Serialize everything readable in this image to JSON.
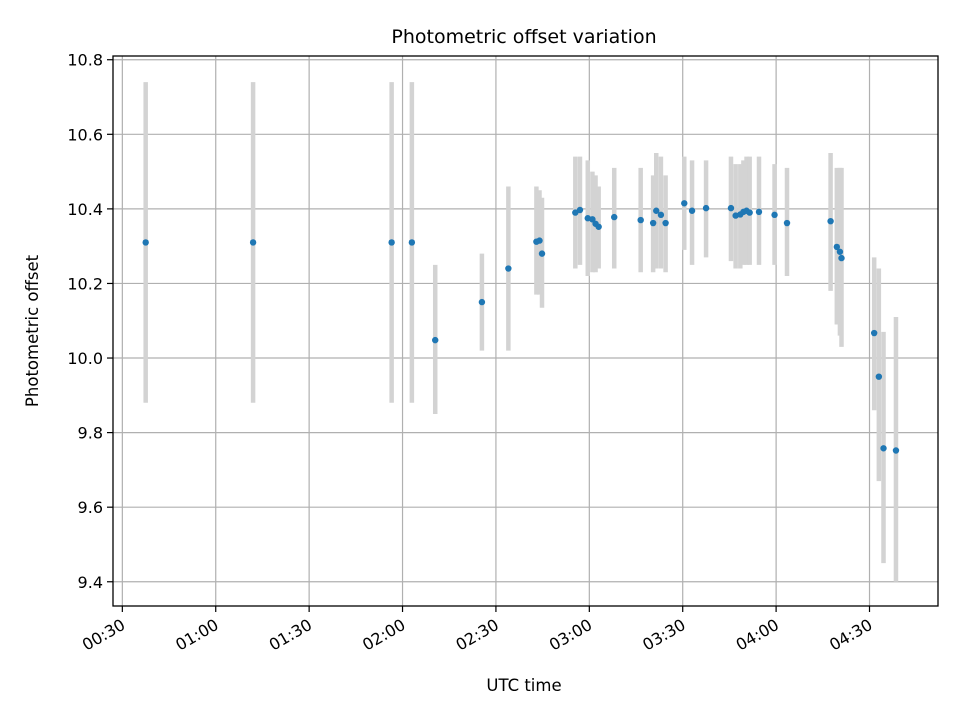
{
  "chart_data": {
    "type": "scatter",
    "title": "Photometric offset variation",
    "xlabel": "UTC time",
    "ylabel": "Photometric offset",
    "grid": true,
    "xlim_minutes": [
      27,
      292
    ],
    "ylim": [
      9.335,
      10.81
    ],
    "x_ticks": [
      {
        "label": "00:30",
        "minutes": 30
      },
      {
        "label": "01:00",
        "minutes": 60
      },
      {
        "label": "01:30",
        "minutes": 90
      },
      {
        "label": "02:00",
        "minutes": 120
      },
      {
        "label": "02:30",
        "minutes": 150
      },
      {
        "label": "03:00",
        "minutes": 180
      },
      {
        "label": "03:30",
        "minutes": 210
      },
      {
        "label": "04:00",
        "minutes": 240
      },
      {
        "label": "04:30",
        "minutes": 270
      }
    ],
    "y_ticks": [
      {
        "label": "9.4",
        "value": 9.4
      },
      {
        "label": "9.6",
        "value": 9.6
      },
      {
        "label": "9.8",
        "value": 9.8
      },
      {
        "label": "10.0",
        "value": 10.0
      },
      {
        "label": "10.2",
        "value": 10.2
      },
      {
        "label": "10.4",
        "value": 10.4
      },
      {
        "label": "10.6",
        "value": 10.6
      },
      {
        "label": "10.8",
        "value": 10.8
      }
    ],
    "colors": {
      "point": "#1f77b4",
      "errorbar": "#d3d3d3",
      "grid": "#b0b0b0"
    },
    "series": [
      {
        "name": "Photometric offset",
        "points": [
          {
            "t": 37.5,
            "y": 10.31,
            "lo": 9.88,
            "hi": 10.74
          },
          {
            "t": 72.0,
            "y": 10.31,
            "lo": 9.88,
            "hi": 10.74
          },
          {
            "t": 116.5,
            "y": 10.31,
            "lo": 9.88,
            "hi": 10.74
          },
          {
            "t": 123.0,
            "y": 10.31,
            "lo": 9.88,
            "hi": 10.74
          },
          {
            "t": 130.5,
            "y": 10.048,
            "lo": 9.85,
            "hi": 10.25
          },
          {
            "t": 145.5,
            "y": 10.15,
            "lo": 10.02,
            "hi": 10.28
          },
          {
            "t": 154.0,
            "y": 10.24,
            "lo": 10.02,
            "hi": 10.46
          },
          {
            "t": 163.0,
            "y": 10.312,
            "lo": 10.17,
            "hi": 10.46
          },
          {
            "t": 164.0,
            "y": 10.315,
            "lo": 10.17,
            "hi": 10.45
          },
          {
            "t": 164.8,
            "y": 10.28,
            "lo": 10.135,
            "hi": 10.43
          },
          {
            "t": 175.5,
            "y": 10.39,
            "lo": 10.24,
            "hi": 10.54
          },
          {
            "t": 177.0,
            "y": 10.397,
            "lo": 10.25,
            "hi": 10.54
          },
          {
            "t": 179.5,
            "y": 10.375,
            "lo": 10.22,
            "hi": 10.53
          },
          {
            "t": 181.0,
            "y": 10.372,
            "lo": 10.23,
            "hi": 10.5
          },
          {
            "t": 182.0,
            "y": 10.36,
            "lo": 10.23,
            "hi": 10.49
          },
          {
            "t": 183.0,
            "y": 10.352,
            "lo": 10.24,
            "hi": 10.46
          },
          {
            "t": 188.0,
            "y": 10.378,
            "lo": 10.24,
            "hi": 10.51
          },
          {
            "t": 196.5,
            "y": 10.37,
            "lo": 10.23,
            "hi": 10.51
          },
          {
            "t": 200.5,
            "y": 10.362,
            "lo": 10.23,
            "hi": 10.49
          },
          {
            "t": 201.5,
            "y": 10.395,
            "lo": 10.24,
            "hi": 10.55
          },
          {
            "t": 203.0,
            "y": 10.384,
            "lo": 10.24,
            "hi": 10.54
          },
          {
            "t": 204.5,
            "y": 10.362,
            "lo": 10.23,
            "hi": 10.49
          },
          {
            "t": 210.5,
            "y": 10.415,
            "lo": 10.29,
            "hi": 10.54
          },
          {
            "t": 213.0,
            "y": 10.395,
            "lo": 10.25,
            "hi": 10.53
          },
          {
            "t": 217.5,
            "y": 10.402,
            "lo": 10.27,
            "hi": 10.53
          },
          {
            "t": 225.5,
            "y": 10.402,
            "lo": 10.26,
            "hi": 10.54
          },
          {
            "t": 227.0,
            "y": 10.382,
            "lo": 10.24,
            "hi": 10.52
          },
          {
            "t": 228.5,
            "y": 10.385,
            "lo": 10.24,
            "hi": 10.52
          },
          {
            "t": 229.5,
            "y": 10.392,
            "lo": 10.25,
            "hi": 10.53
          },
          {
            "t": 230.5,
            "y": 10.395,
            "lo": 10.25,
            "hi": 10.54
          },
          {
            "t": 231.5,
            "y": 10.39,
            "lo": 10.25,
            "hi": 10.54
          },
          {
            "t": 234.5,
            "y": 10.392,
            "lo": 10.25,
            "hi": 10.54
          },
          {
            "t": 239.5,
            "y": 10.384,
            "lo": 10.25,
            "hi": 10.52
          },
          {
            "t": 243.5,
            "y": 10.362,
            "lo": 10.22,
            "hi": 10.51
          },
          {
            "t": 257.5,
            "y": 10.367,
            "lo": 10.18,
            "hi": 10.55
          },
          {
            "t": 259.5,
            "y": 10.298,
            "lo": 10.09,
            "hi": 10.51
          },
          {
            "t": 260.5,
            "y": 10.285,
            "lo": 10.06,
            "hi": 10.51
          },
          {
            "t": 261.0,
            "y": 10.268,
            "lo": 10.03,
            "hi": 10.51
          },
          {
            "t": 271.5,
            "y": 10.067,
            "lo": 9.86,
            "hi": 10.27
          },
          {
            "t": 273.0,
            "y": 9.95,
            "lo": 9.67,
            "hi": 10.24
          },
          {
            "t": 274.5,
            "y": 9.758,
            "lo": 9.45,
            "hi": 10.07
          },
          {
            "t": 278.5,
            "y": 9.752,
            "lo": 9.4,
            "hi": 10.11
          }
        ]
      }
    ]
  }
}
